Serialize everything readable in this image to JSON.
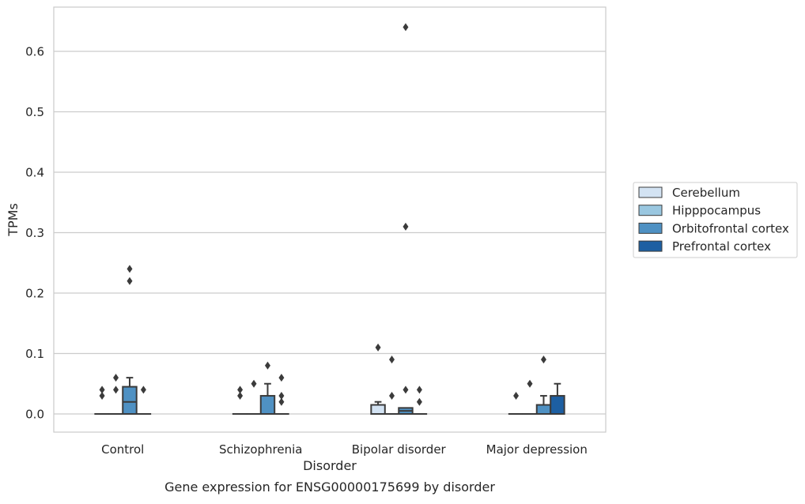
{
  "chart_data": {
    "type": "box",
    "title": "",
    "caption": "Gene expression for ENSG00000175699 by disorder",
    "xlabel": "Disorder",
    "ylabel": "TPMs",
    "ylim": [
      -0.031,
      0.675
    ],
    "yticks": [
      0.0,
      0.1,
      0.2,
      0.3,
      0.4,
      0.5,
      0.6
    ],
    "ytick_labels": [
      "0.0",
      "0.1",
      "0.2",
      "0.3",
      "0.4",
      "0.5",
      "0.6"
    ],
    "grid": "horizontal",
    "legend_position": "right",
    "categories": [
      "Control",
      "Schizophrenia",
      "Bipolar disorder",
      "Major depression"
    ],
    "series": [
      {
        "name": "Cerebellum",
        "color": "#d3e3f3",
        "boxes": [
          {
            "q1": 0,
            "median": 0,
            "q3": 0,
            "whisker_low": 0,
            "whisker_high": 0,
            "outliers": [
              0.03,
              0.04
            ]
          },
          {
            "q1": 0,
            "median": 0,
            "q3": 0,
            "whisker_low": 0,
            "whisker_high": 0,
            "outliers": [
              0.03,
              0.04
            ]
          },
          {
            "q1": 0,
            "median": 0,
            "q3": 0.015,
            "whisker_low": 0,
            "whisker_high": 0.02,
            "outliers": [
              0.11
            ]
          },
          {
            "q1": 0,
            "median": 0,
            "q3": 0,
            "whisker_low": 0,
            "whisker_high": 0,
            "outliers": [
              0.03
            ]
          }
        ]
      },
      {
        "name": "Hipppocampus",
        "color": "#9ac7e0",
        "boxes": [
          {
            "q1": 0,
            "median": 0,
            "q3": 0,
            "whisker_low": 0,
            "whisker_high": 0,
            "outliers": [
              0.04,
              0.06
            ]
          },
          {
            "q1": 0,
            "median": 0,
            "q3": 0,
            "whisker_low": 0,
            "whisker_high": 0,
            "outliers": [
              0.05
            ]
          },
          {
            "q1": 0,
            "median": 0,
            "q3": 0,
            "whisker_low": 0,
            "whisker_high": 0,
            "outliers": [
              0.03,
              0.09
            ]
          },
          {
            "q1": 0,
            "median": 0,
            "q3": 0,
            "whisker_low": 0,
            "whisker_high": 0,
            "outliers": [
              0.05
            ]
          }
        ]
      },
      {
        "name": "Orbitofrontal cortex",
        "color": "#4f91c3",
        "boxes": [
          {
            "q1": 0,
            "median": 0.02,
            "q3": 0.045,
            "whisker_low": 0,
            "whisker_high": 0.06,
            "outliers": [
              0.22,
              0.24
            ]
          },
          {
            "q1": 0,
            "median": 0,
            "q3": 0.03,
            "whisker_low": 0,
            "whisker_high": 0.05,
            "outliers": [
              0.08
            ]
          },
          {
            "q1": 0,
            "median": 0.005,
            "q3": 0.01,
            "whisker_low": 0,
            "whisker_high": 0.01,
            "outliers": [
              0.04,
              0.31,
              0.64
            ]
          },
          {
            "q1": 0,
            "median": 0,
            "q3": 0.015,
            "whisker_low": 0,
            "whisker_high": 0.03,
            "outliers": [
              0.09
            ]
          }
        ]
      },
      {
        "name": "Prefrontal cortex",
        "color": "#1d5fa2",
        "boxes": [
          {
            "q1": 0,
            "median": 0,
            "q3": 0,
            "whisker_low": 0,
            "whisker_high": 0,
            "outliers": [
              0.04
            ]
          },
          {
            "q1": 0,
            "median": 0,
            "q3": 0,
            "whisker_low": 0,
            "whisker_high": 0,
            "outliers": [
              0.02,
              0.03,
              0.06
            ]
          },
          {
            "q1": 0,
            "median": 0,
            "q3": 0,
            "whisker_low": 0,
            "whisker_high": 0,
            "outliers": [
              0.02,
              0.04
            ]
          },
          {
            "q1": 0,
            "median": 0,
            "q3": 0.03,
            "whisker_low": 0,
            "whisker_high": 0.05,
            "outliers": []
          }
        ]
      }
    ]
  }
}
